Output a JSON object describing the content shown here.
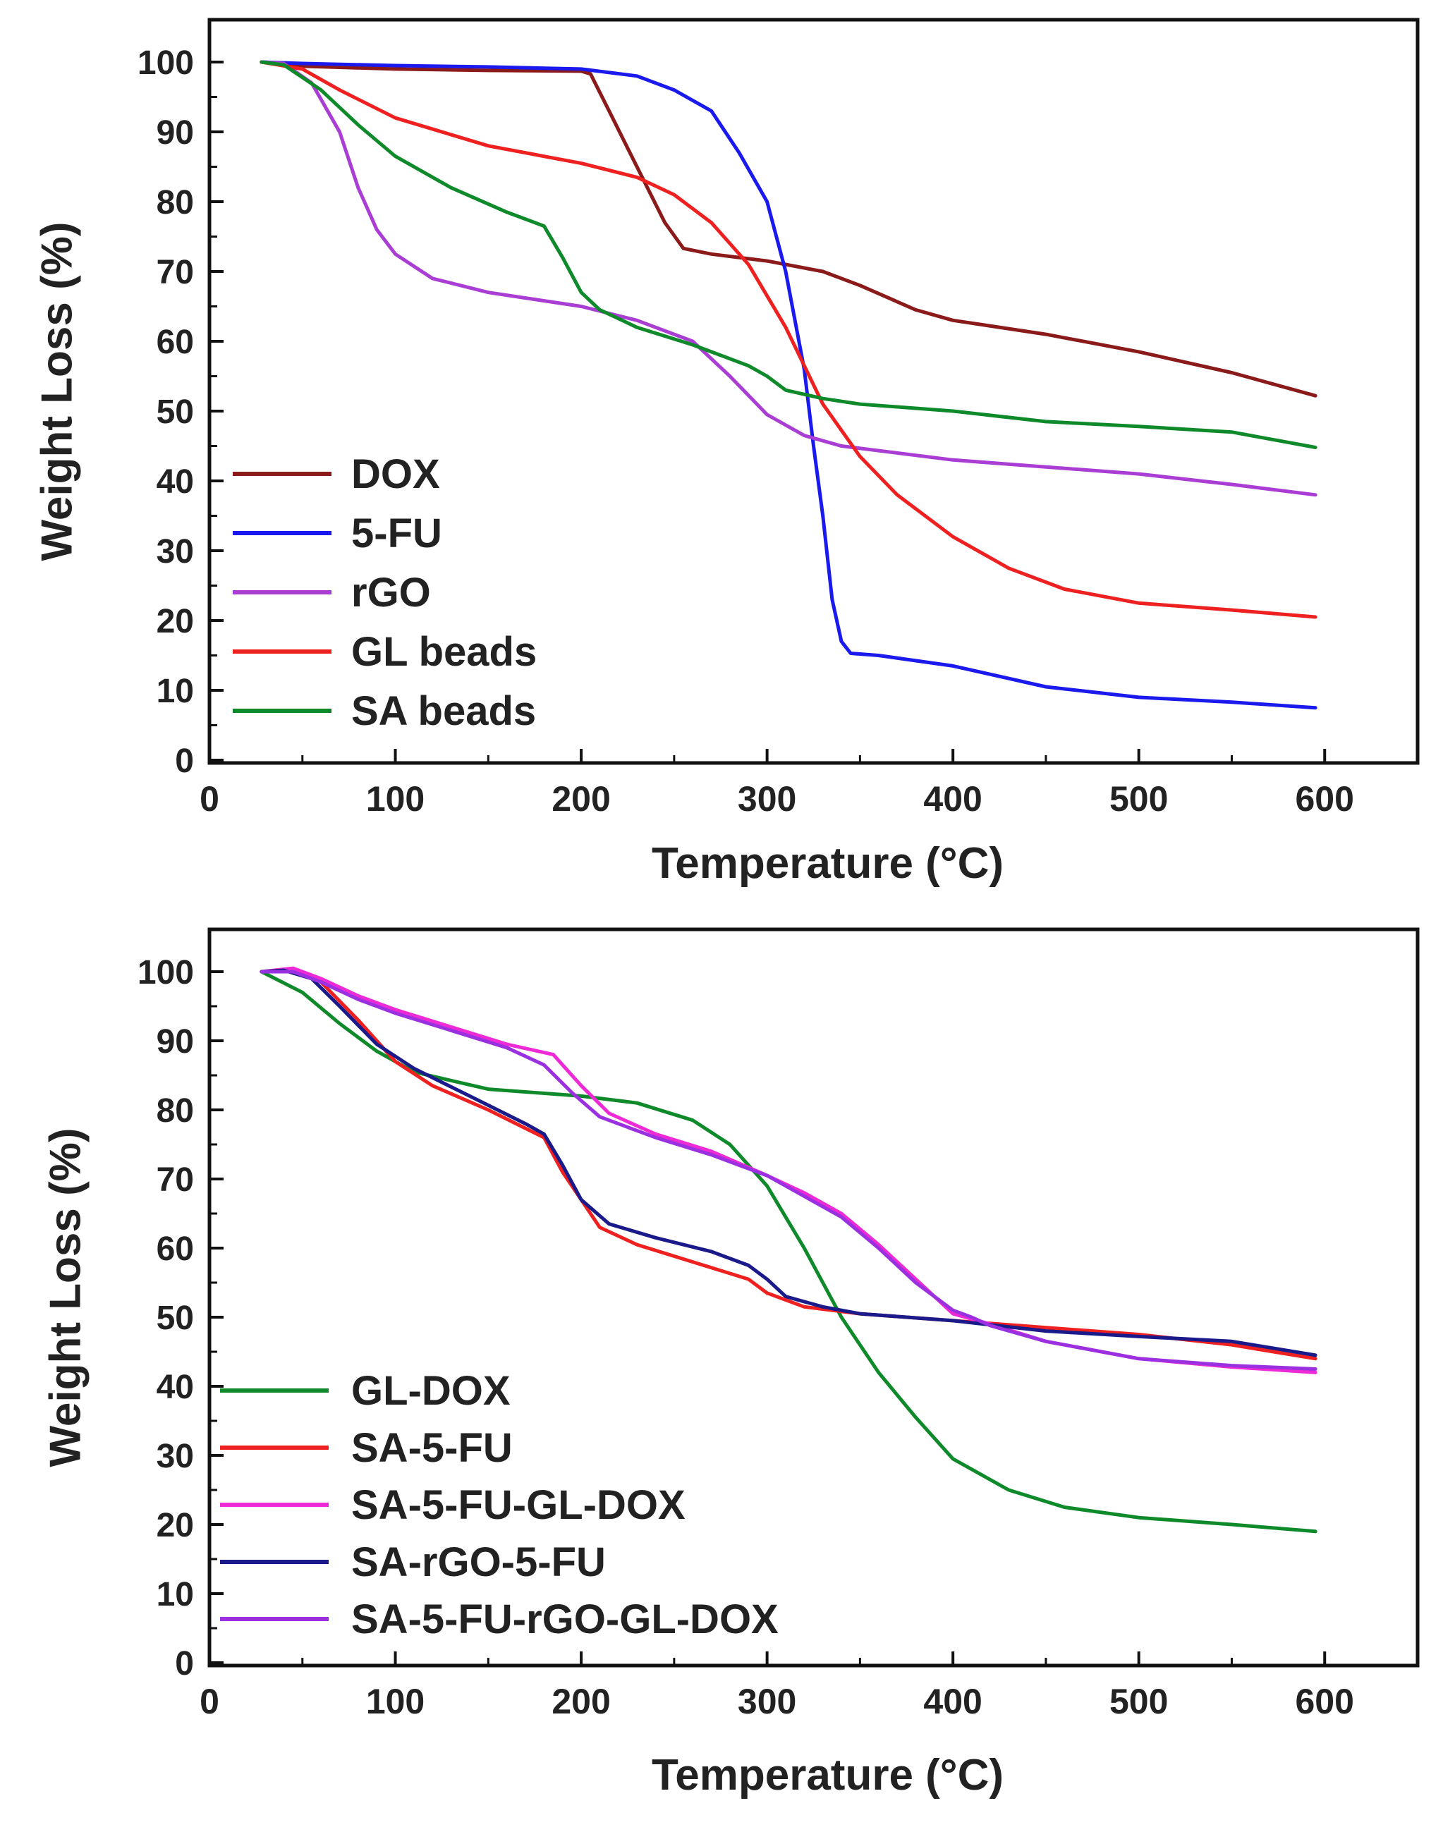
{
  "chart_data": [
    {
      "type": "line",
      "title": "",
      "xlabel": "Temperature (°C)",
      "ylabel": "Weight Loss (%)",
      "xlim": [
        0,
        650
      ],
      "ylim": [
        0,
        100
      ],
      "xticks": [
        0,
        100,
        200,
        300,
        400,
        500,
        600
      ],
      "yticks": [
        0,
        10,
        20,
        30,
        40,
        50,
        60,
        70,
        80,
        90,
        100
      ],
      "grid": false,
      "legend_position": "left",
      "series": [
        {
          "name": "DOX",
          "color": "#8b1a1a",
          "x": [
            28,
            50,
            100,
            150,
            200,
            205,
            215,
            230,
            245,
            255,
            270,
            300,
            330,
            350,
            380,
            400,
            450,
            500,
            550,
            595
          ],
          "y": [
            100,
            99.4,
            99.0,
            98.8,
            98.7,
            98.3,
            93,
            85,
            77,
            73.3,
            72.5,
            71.5,
            70,
            68,
            64.5,
            63,
            61,
            58.5,
            55.5,
            52.2
          ]
        },
        {
          "name": "5-FU",
          "color": "#1a1aee",
          "x": [
            28,
            50,
            100,
            150,
            200,
            230,
            250,
            270,
            285,
            300,
            310,
            320,
            325,
            330,
            335,
            340,
            345,
            360,
            400,
            450,
            500,
            550,
            595
          ],
          "y": [
            100,
            99.8,
            99.5,
            99.3,
            99,
            98,
            96,
            93,
            87,
            80,
            70,
            56,
            45,
            35,
            23,
            17,
            15.3,
            15,
            13.5,
            10.5,
            9,
            8.3,
            7.5
          ]
        },
        {
          "name": "rGO",
          "color": "#aa3dd4",
          "x": [
            28,
            40,
            55,
            70,
            80,
            90,
            100,
            120,
            150,
            200,
            230,
            260,
            280,
            300,
            320,
            340,
            400,
            450,
            500,
            550,
            595
          ],
          "y": [
            100,
            99.8,
            97,
            90,
            82,
            76,
            72.5,
            69,
            67,
            65,
            63,
            60,
            55,
            49.5,
            46.5,
            45,
            43,
            42,
            41,
            39.5,
            38
          ]
        },
        {
          "name": "GL beads",
          "color": "#ee2020",
          "x": [
            28,
            50,
            70,
            100,
            150,
            200,
            230,
            250,
            270,
            290,
            310,
            330,
            350,
            370,
            400,
            430,
            460,
            500,
            550,
            595
          ],
          "y": [
            100,
            99,
            96,
            92,
            88,
            85.5,
            83.5,
            81,
            77,
            71,
            62,
            51,
            43.5,
            38,
            32,
            27.5,
            24.5,
            22.5,
            21.5,
            20.5
          ]
        },
        {
          "name": "SA beads",
          "color": "#0f8a2a",
          "x": [
            28,
            40,
            60,
            80,
            100,
            130,
            160,
            180,
            190,
            200,
            210,
            230,
            260,
            290,
            300,
            310,
            330,
            350,
            400,
            450,
            500,
            550,
            595
          ],
          "y": [
            100,
            99.6,
            96,
            91,
            86.5,
            82,
            78.5,
            76.5,
            72,
            67,
            64.5,
            62,
            59.5,
            56.5,
            55,
            53,
            51.8,
            51,
            50,
            48.5,
            47.8,
            47,
            44.8
          ]
        }
      ]
    },
    {
      "type": "line",
      "title": "",
      "xlabel": "Temperature (°C)",
      "ylabel": "Weight Loss (%)",
      "xlim": [
        0,
        650
      ],
      "ylim": [
        0,
        100
      ],
      "xticks": [
        0,
        100,
        200,
        300,
        400,
        500,
        600
      ],
      "yticks": [
        0,
        10,
        20,
        30,
        40,
        50,
        60,
        70,
        80,
        90,
        100
      ],
      "grid": false,
      "legend_position": "left",
      "series": [
        {
          "name": "GL-DOX",
          "color": "#0f8a2a",
          "x": [
            28,
            50,
            70,
            90,
            110,
            150,
            200,
            230,
            260,
            280,
            300,
            320,
            340,
            360,
            380,
            400,
            430,
            460,
            500,
            550,
            595
          ],
          "y": [
            100,
            97,
            92.5,
            88.5,
            85.5,
            83,
            82,
            81,
            78.5,
            75,
            69,
            60,
            50,
            42,
            35.5,
            29.5,
            25,
            22.5,
            21,
            20,
            19
          ]
        },
        {
          "name": "SA-5-FU",
          "color": "#ee2020",
          "x": [
            28,
            45,
            60,
            80,
            100,
            120,
            150,
            180,
            190,
            200,
            210,
            230,
            260,
            290,
            300,
            320,
            350,
            400,
            450,
            500,
            550,
            595
          ],
          "y": [
            100,
            100.2,
            98.5,
            93,
            87,
            83.5,
            80,
            76,
            71,
            67,
            63,
            60.5,
            58,
            55.5,
            53.5,
            51.5,
            50.5,
            49.5,
            48.5,
            47.5,
            46,
            44
          ]
        },
        {
          "name": "SA-5-FU-GL-DOX",
          "color": "#ee2ad6",
          "x": [
            28,
            45,
            60,
            80,
            100,
            130,
            160,
            185,
            200,
            215,
            240,
            270,
            300,
            320,
            340,
            360,
            380,
            400,
            420,
            450,
            500,
            550,
            595
          ],
          "y": [
            100,
            100.5,
            99,
            96.5,
            94.5,
            92,
            89.5,
            88,
            83.5,
            79.5,
            76.5,
            74,
            70.5,
            68,
            65,
            60.5,
            55.5,
            50.5,
            49,
            46.5,
            44,
            42.8,
            42
          ]
        },
        {
          "name": "SA-rGO-5-FU",
          "color": "#1a1a8a",
          "x": [
            28,
            40,
            55,
            70,
            90,
            110,
            140,
            170,
            180,
            190,
            200,
            215,
            240,
            270,
            290,
            300,
            310,
            330,
            350,
            400,
            450,
            500,
            550,
            595
          ],
          "y": [
            100,
            100.2,
            99,
            95,
            89.5,
            86,
            82,
            78,
            76.5,
            72,
            67,
            63.5,
            61.5,
            59.5,
            57.5,
            55.5,
            53,
            51.5,
            50.5,
            49.5,
            48,
            47.2,
            46.5,
            44.5
          ]
        },
        {
          "name": "SA-5-FU-rGO-GL-DOX",
          "color": "#9b30e0",
          "x": [
            28,
            45,
            60,
            80,
            100,
            130,
            160,
            180,
            195,
            210,
            240,
            270,
            300,
            320,
            340,
            360,
            380,
            400,
            410,
            420,
            450,
            500,
            550,
            595
          ],
          "y": [
            100,
            100,
            98.5,
            96,
            94,
            91.5,
            89,
            86.5,
            82.5,
            79,
            76,
            73.5,
            70.5,
            67.5,
            64.5,
            60,
            55,
            51,
            50,
            48.8,
            46.5,
            44,
            43,
            42.5
          ]
        }
      ]
    }
  ]
}
